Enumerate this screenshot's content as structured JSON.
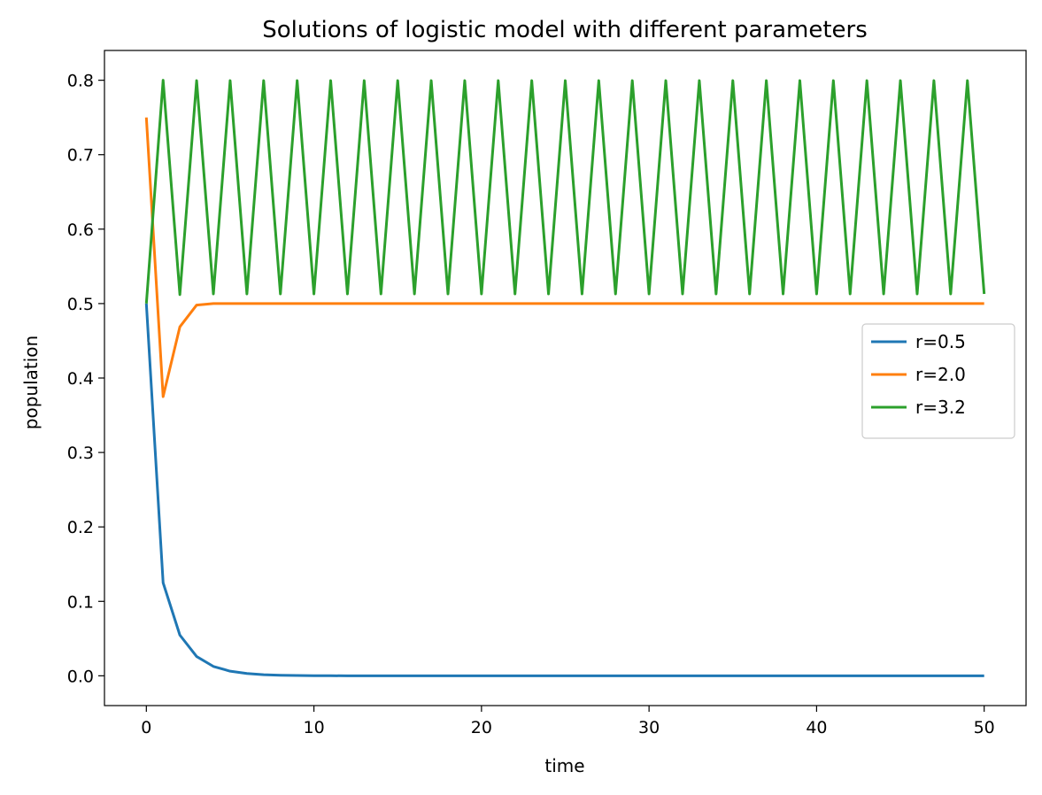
{
  "chart_data": {
    "type": "line",
    "title": "Solutions of logistic model with different parameters",
    "xlabel": "time",
    "ylabel": "population",
    "xlim": [
      -2.5,
      52.5
    ],
    "ylim": [
      -0.04,
      0.84
    ],
    "xticks": [
      0,
      10,
      20,
      30,
      40,
      50
    ],
    "yticks": [
      0.0,
      0.1,
      0.2,
      0.3,
      0.4,
      0.5,
      0.6,
      0.7,
      0.8
    ],
    "ytick_labels": [
      "0.0",
      "0.1",
      "0.2",
      "0.3",
      "0.4",
      "0.5",
      "0.6",
      "0.7",
      "0.8"
    ],
    "grid": false,
    "legend_position": "center-right",
    "series": [
      {
        "name": "r=0.5",
        "color": "#1f77b4",
        "x": [
          0,
          1,
          2,
          3,
          4,
          5,
          6,
          7,
          8,
          9,
          10,
          11,
          12,
          13,
          14,
          15,
          16,
          17,
          18,
          19,
          20,
          21,
          22,
          23,
          24,
          25,
          26,
          27,
          28,
          29,
          30,
          31,
          32,
          33,
          34,
          35,
          36,
          37,
          38,
          39,
          40,
          41,
          42,
          43,
          44,
          45,
          46,
          47,
          48,
          49,
          50
        ],
        "y": [
          0.5,
          0.125,
          0.0547,
          0.0259,
          0.0126,
          0.0062,
          0.0031,
          0.0015,
          0.0008,
          0.0004,
          0.0002,
          0.0001,
          0,
          0,
          0,
          0,
          0,
          0,
          0,
          0,
          0,
          0,
          0,
          0,
          0,
          0,
          0,
          0,
          0,
          0,
          0,
          0,
          0,
          0,
          0,
          0,
          0,
          0,
          0,
          0,
          0,
          0,
          0,
          0,
          0,
          0,
          0,
          0,
          0,
          0,
          0
        ]
      },
      {
        "name": "r=2.0",
        "color": "#ff7f0e",
        "x": [
          0,
          1,
          2,
          3,
          4,
          5,
          6,
          7,
          8,
          9,
          10,
          11,
          12,
          13,
          14,
          15,
          16,
          17,
          18,
          19,
          20,
          21,
          22,
          23,
          24,
          25,
          26,
          27,
          28,
          29,
          30,
          31,
          32,
          33,
          34,
          35,
          36,
          37,
          38,
          39,
          40,
          41,
          42,
          43,
          44,
          45,
          46,
          47,
          48,
          49,
          50
        ],
        "y": [
          0.75,
          0.375,
          0.4688,
          0.498,
          0.5,
          0.5,
          0.5,
          0.5,
          0.5,
          0.5,
          0.5,
          0.5,
          0.5,
          0.5,
          0.5,
          0.5,
          0.5,
          0.5,
          0.5,
          0.5,
          0.5,
          0.5,
          0.5,
          0.5,
          0.5,
          0.5,
          0.5,
          0.5,
          0.5,
          0.5,
          0.5,
          0.5,
          0.5,
          0.5,
          0.5,
          0.5,
          0.5,
          0.5,
          0.5,
          0.5,
          0.5,
          0.5,
          0.5,
          0.5,
          0.5,
          0.5,
          0.5,
          0.5,
          0.5,
          0.5,
          0.5
        ]
      },
      {
        "name": "r=3.2",
        "color": "#2ca02c",
        "x": [
          0,
          1,
          2,
          3,
          4,
          5,
          6,
          7,
          8,
          9,
          10,
          11,
          12,
          13,
          14,
          15,
          16,
          17,
          18,
          19,
          20,
          21,
          22,
          23,
          24,
          25,
          26,
          27,
          28,
          29,
          30,
          31,
          32,
          33,
          34,
          35,
          36,
          37,
          38,
          39,
          40,
          41,
          42,
          43,
          44,
          45,
          46,
          47,
          48,
          49,
          50
        ],
        "y": [
          0.5,
          0.8,
          0.512,
          0.7995,
          0.513,
          0.7995,
          0.513,
          0.7995,
          0.513,
          0.7995,
          0.513,
          0.7995,
          0.513,
          0.7995,
          0.513,
          0.7995,
          0.513,
          0.7995,
          0.513,
          0.7995,
          0.513,
          0.7995,
          0.513,
          0.7995,
          0.513,
          0.7995,
          0.513,
          0.7995,
          0.513,
          0.7995,
          0.513,
          0.7995,
          0.513,
          0.7995,
          0.513,
          0.7995,
          0.513,
          0.7995,
          0.513,
          0.7995,
          0.513,
          0.7995,
          0.513,
          0.7995,
          0.513,
          0.7995,
          0.513,
          0.7995,
          0.513,
          0.7995,
          0.513
        ]
      }
    ]
  }
}
